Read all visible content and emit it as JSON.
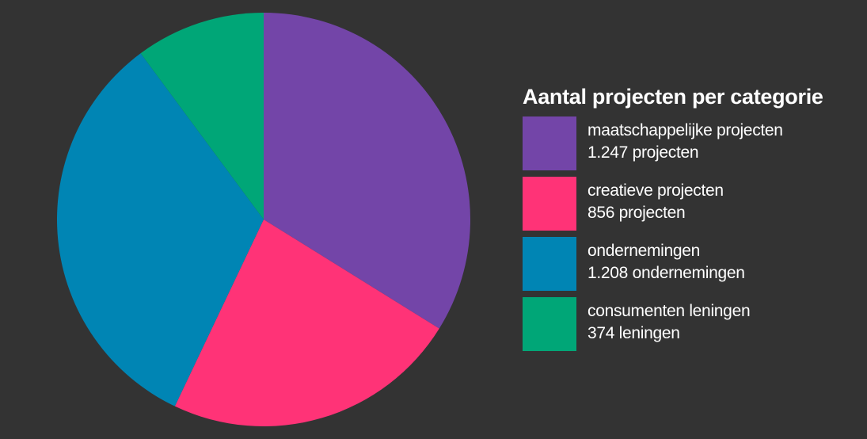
{
  "chart_data": {
    "type": "pie",
    "title": "Aantal projecten per categorie",
    "slices": [
      {
        "label": "maatschappelijke projecten",
        "value": 1247,
        "value_text": "1.247 projecten",
        "color": "#7345A8"
      },
      {
        "label": "creatieve projecten",
        "value": 856,
        "value_text": "856 projecten",
        "color": "#FF3377"
      },
      {
        "label": "ondernemingen",
        "value": 1208,
        "value_text": "1.208 ondernemingen",
        "color": "#0085B4"
      },
      {
        "label": "consumenten leningen",
        "value": 374,
        "value_text": "374 leningen",
        "color": "#00A677"
      }
    ],
    "legend_position": "right"
  }
}
